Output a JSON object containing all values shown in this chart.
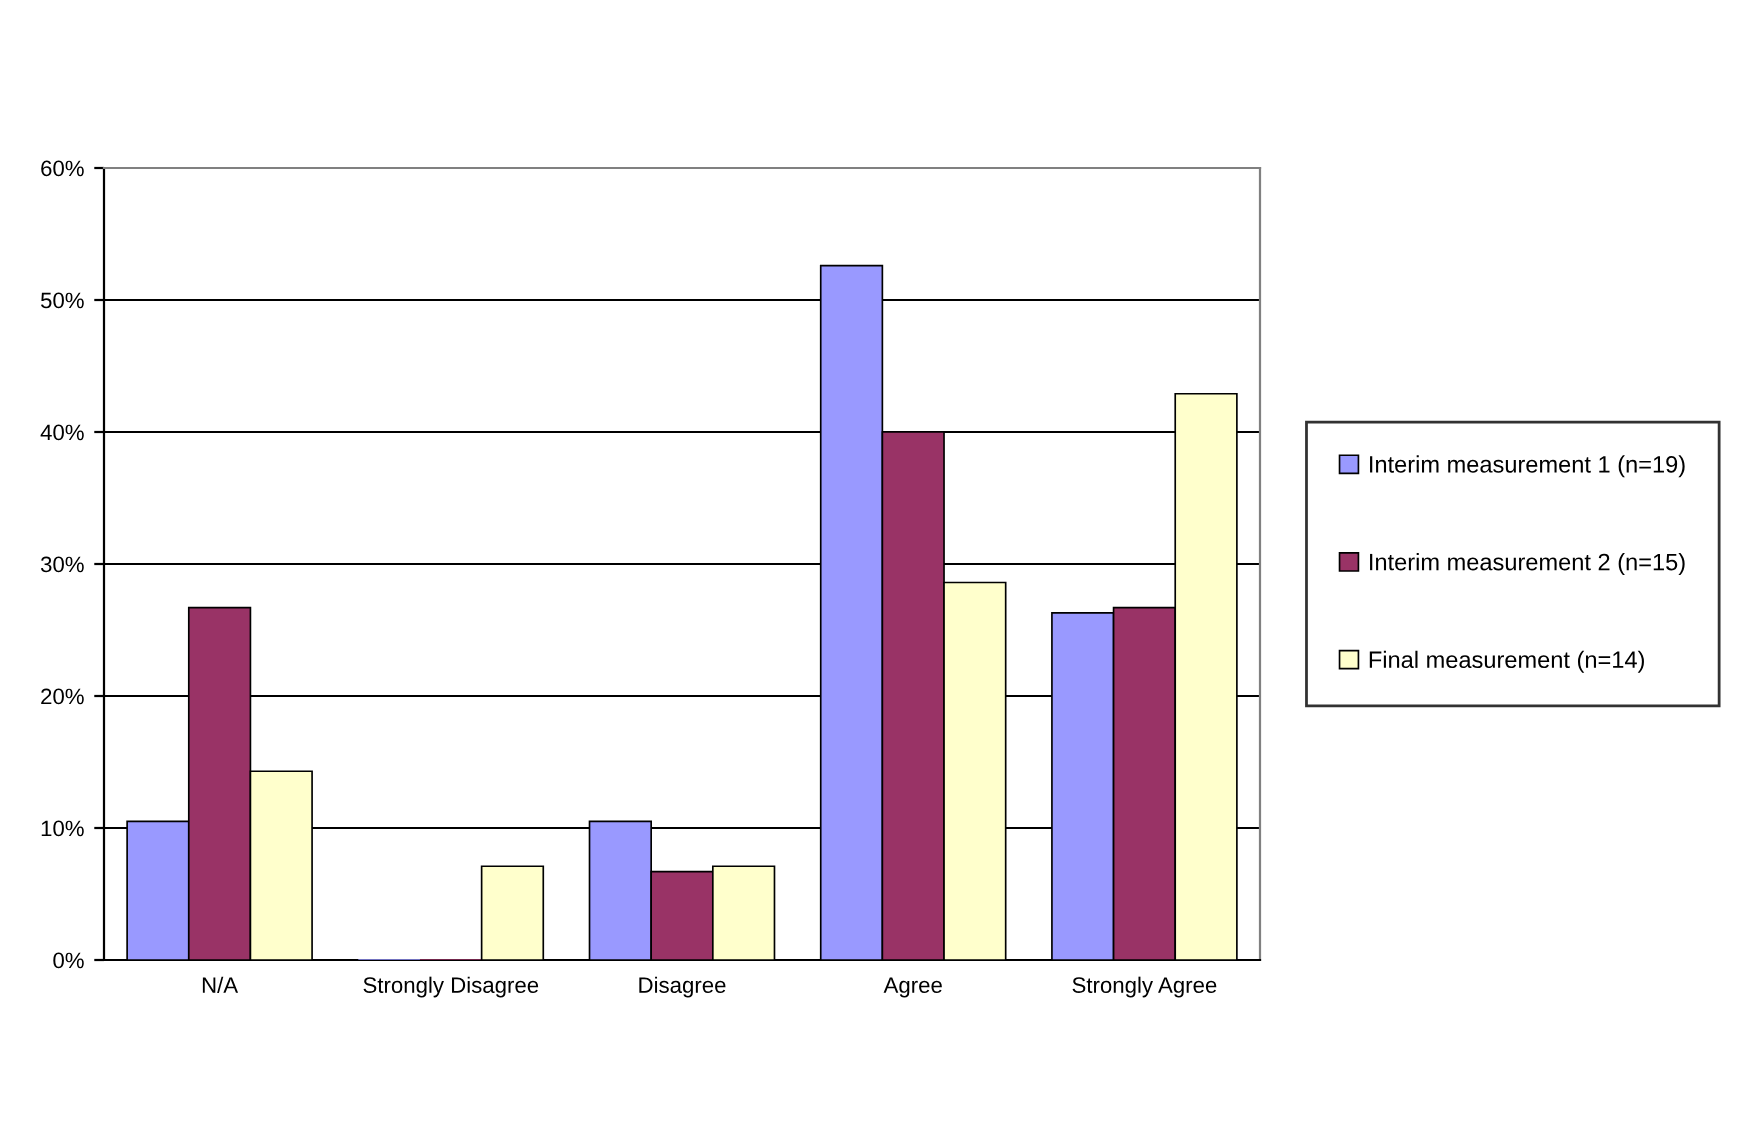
{
  "chart_data": {
    "type": "bar",
    "categories": [
      "N/A",
      "Strongly Disagree",
      "Disagree",
      "Agree",
      "Strongly Agree"
    ],
    "series": [
      {
        "name": "Interim measurement 1 (n=19)",
        "color": "#9999ff",
        "values": [
          10.5,
          0,
          10.5,
          52.6,
          26.3
        ]
      },
      {
        "name": "Interim measurement 2 (n=15)",
        "color": "#993366",
        "values": [
          26.7,
          0,
          6.7,
          40,
          26.7
        ]
      },
      {
        "name": "Final measurement (n=14)",
        "color": "#ffffcc",
        "values": [
          14.3,
          7.1,
          7.1,
          28.6,
          42.9
        ]
      }
    ],
    "ylim": [
      0,
      60
    ],
    "yticks": [
      {
        "value": 0,
        "label": "0%"
      },
      {
        "value": 10,
        "label": "10%"
      },
      {
        "value": 20,
        "label": "20%"
      },
      {
        "value": 30,
        "label": "30%"
      },
      {
        "value": 40,
        "label": "40%"
      },
      {
        "value": 50,
        "label": "50%"
      },
      {
        "value": 60,
        "label": "60%"
      }
    ],
    "grid": "y",
    "legend": "right"
  }
}
